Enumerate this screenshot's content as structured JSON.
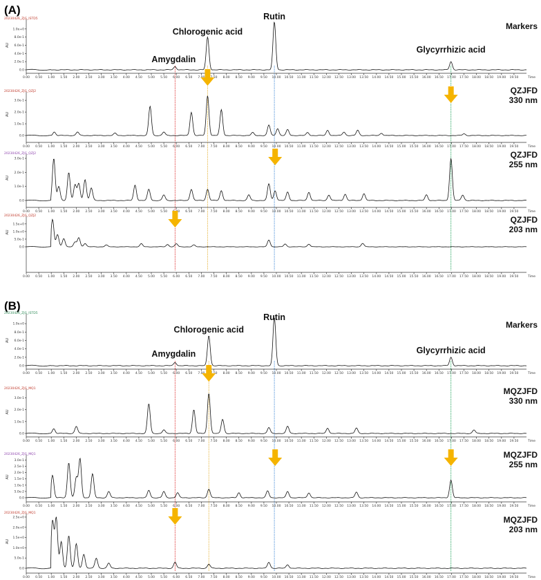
{
  "colors": {
    "arrow": "#f5b400",
    "line_amygdalin": "#e03c3c",
    "line_chlorogenic": "#e8b94a",
    "line_rutin": "#4a8fd8",
    "line_glycyrrhizic": "#2faa66",
    "trace": "#111111",
    "id_red": "#c0392b",
    "id_purple": "#8e44ad",
    "id_green": "#2e8b57"
  },
  "chart_data": [
    {
      "type": "line",
      "panel": "(A)",
      "title": "(A)",
      "xlabel": "Time",
      "xlim": [
        0.0,
        20.0
      ],
      "x_ticks": [
        "0.00",
        "0.50",
        "1.00",
        "1.50",
        "2.00",
        "2.50",
        "3.00",
        "3.50",
        "4.00",
        "4.50",
        "5.00",
        "5.50",
        "6.00",
        "6.50",
        "7.00",
        "7.50",
        "8.00",
        "8.50",
        "9.00",
        "9.50",
        "10.00",
        "10.50",
        "11.00",
        "11.50",
        "12.00",
        "12.50",
        "13.00",
        "13.50",
        "14.00",
        "14.50",
        "15.00",
        "15.50",
        "16.00",
        "16.50",
        "17.00",
        "17.50",
        "18.00",
        "18.50",
        "19.00",
        "19.50"
      ],
      "reference_lines": [
        {
          "name": "Amygdalin",
          "x": 5.95,
          "color_key": "line_amygdalin"
        },
        {
          "name": "Chlorogenic acid",
          "x": 7.25,
          "color_key": "line_chlorogenic"
        },
        {
          "name": "Rutin",
          "x": 9.92,
          "color_key": "line_rutin"
        },
        {
          "name": "Glycyrrhizic acid",
          "x": 16.98,
          "color_key": "line_glycyrrhizic"
        }
      ],
      "series": [
        {
          "name": "Markers",
          "sample_id": "20230426_ZJG_ISTD5",
          "id_color_key": "id_red",
          "ylabel": "AU",
          "y_ticks": [
            "0.0",
            "2.0e-1",
            "4.0e-1",
            "6.0e-1",
            "8.0e-1",
            "1.0e+0"
          ],
          "ymax": 1.2,
          "peaks": [
            {
              "label": "Amygdalin",
              "x": 5.95,
              "y": 0.08
            },
            {
              "label": "Chlorogenic acid",
              "x": 7.25,
              "y": 0.8
            },
            {
              "label": "Rutin",
              "x": 9.92,
              "y": 1.17
            },
            {
              "label": "Glycyrrhizic acid",
              "x": 16.98,
              "y": 0.2
            }
          ],
          "arrows": [
            {
              "x": 7.25
            }
          ]
        },
        {
          "name": "QZJFD\n330 nm",
          "sample_id": "20230426_ZJG_QZJ2",
          "id_color_key": "id_red",
          "ylabel": "AU",
          "y_ticks": [
            "0.0",
            "1.0e-1",
            "2.0e-1",
            "3.0e-1"
          ],
          "ymax": 0.36,
          "peaks": [
            {
              "x": 1.12,
              "y": 0.03
            },
            {
              "x": 2.05,
              "y": 0.03
            },
            {
              "x": 3.55,
              "y": 0.02
            },
            {
              "x": 4.95,
              "y": 0.25
            },
            {
              "x": 5.5,
              "y": 0.03
            },
            {
              "x": 6.6,
              "y": 0.2
            },
            {
              "x": 7.25,
              "y": 0.34
            },
            {
              "x": 7.8,
              "y": 0.22
            },
            {
              "x": 9.05,
              "y": 0.025
            },
            {
              "x": 9.7,
              "y": 0.09
            },
            {
              "x": 10.05,
              "y": 0.06
            },
            {
              "x": 10.45,
              "y": 0.05
            },
            {
              "x": 11.25,
              "y": 0.025
            },
            {
              "x": 12.05,
              "y": 0.045
            },
            {
              "x": 12.7,
              "y": 0.03
            },
            {
              "x": 13.25,
              "y": 0.045
            },
            {
              "x": 14.2,
              "y": 0.02
            },
            {
              "x": 17.5,
              "y": 0.015
            }
          ],
          "arrows": [
            {
              "x": 16.98
            }
          ]
        },
        {
          "name": "QZJFD\n255 nm",
          "sample_id": "20230426_ZJG_QZJ2",
          "id_color_key": "id_purple",
          "ylabel": "AU",
          "y_ticks": [
            "0.0",
            "1.0e-1",
            "2.0e-1",
            "3.0e-1"
          ],
          "ymax": 0.32,
          "peaks": [
            {
              "x": 1.1,
              "y": 0.3
            },
            {
              "x": 1.3,
              "y": 0.1
            },
            {
              "x": 1.7,
              "y": 0.2
            },
            {
              "x": 1.95,
              "y": 0.11
            },
            {
              "x": 2.1,
              "y": 0.12
            },
            {
              "x": 2.35,
              "y": 0.15
            },
            {
              "x": 2.6,
              "y": 0.09
            },
            {
              "x": 4.35,
              "y": 0.11
            },
            {
              "x": 4.9,
              "y": 0.08
            },
            {
              "x": 5.5,
              "y": 0.04
            },
            {
              "x": 6.6,
              "y": 0.08
            },
            {
              "x": 7.25,
              "y": 0.08
            },
            {
              "x": 7.8,
              "y": 0.07
            },
            {
              "x": 8.9,
              "y": 0.04
            },
            {
              "x": 9.7,
              "y": 0.12
            },
            {
              "x": 9.95,
              "y": 0.07
            },
            {
              "x": 10.45,
              "y": 0.06
            },
            {
              "x": 11.3,
              "y": 0.06
            },
            {
              "x": 12.1,
              "y": 0.04
            },
            {
              "x": 12.75,
              "y": 0.045
            },
            {
              "x": 13.5,
              "y": 0.05
            },
            {
              "x": 16.0,
              "y": 0.04
            },
            {
              "x": 16.98,
              "y": 0.3
            },
            {
              "x": 17.45,
              "y": 0.04
            }
          ],
          "arrows": [
            {
              "x": 9.95
            }
          ]
        },
        {
          "name": "QZJFD\n203 nm",
          "sample_id": "20230426_ZJG_QZJ2",
          "id_color_key": "id_red",
          "ylabel": "AU",
          "y_ticks": [
            "0.0",
            "5.0e-1",
            "1.0e+0",
            "1.5e+0"
          ],
          "ymax": 1.9,
          "peaks": [
            {
              "x": 1.05,
              "y": 1.8
            },
            {
              "x": 1.25,
              "y": 0.8
            },
            {
              "x": 1.5,
              "y": 0.55
            },
            {
              "x": 1.95,
              "y": 0.3
            },
            {
              "x": 2.1,
              "y": 0.6
            },
            {
              "x": 2.35,
              "y": 0.22
            },
            {
              "x": 3.2,
              "y": 0.12
            },
            {
              "x": 4.6,
              "y": 0.2
            },
            {
              "x": 5.65,
              "y": 0.15
            },
            {
              "x": 6.0,
              "y": 0.2
            },
            {
              "x": 6.7,
              "y": 0.12
            },
            {
              "x": 9.7,
              "y": 0.45
            },
            {
              "x": 10.35,
              "y": 0.18
            },
            {
              "x": 11.3,
              "y": 0.18
            },
            {
              "x": 13.45,
              "y": 0.23
            }
          ],
          "arrows": [
            {
              "x": 5.95
            }
          ]
        }
      ]
    },
    {
      "type": "line",
      "panel": "(B)",
      "title": "(B)",
      "xlabel": "Time",
      "xlim": [
        0.0,
        20.0
      ],
      "x_ticks": [
        "0.00",
        "0.50",
        "1.00",
        "1.50",
        "2.00",
        "2.50",
        "3.00",
        "3.50",
        "4.00",
        "4.50",
        "5.00",
        "5.50",
        "6.00",
        "6.50",
        "7.00",
        "7.50",
        "8.00",
        "8.50",
        "9.00",
        "9.50",
        "10.00",
        "10.50",
        "11.00",
        "11.50",
        "12.00",
        "12.50",
        "13.00",
        "13.50",
        "14.00",
        "14.50",
        "15.00",
        "15.50",
        "16.00",
        "16.50",
        "17.00",
        "17.50",
        "18.00",
        "18.50",
        "19.00",
        "19.50"
      ],
      "reference_lines": [
        {
          "name": "Amygdalin",
          "x": 5.95,
          "color_key": "line_amygdalin"
        },
        {
          "name": "Chlorogenic acid",
          "x": 7.3,
          "color_key": "line_chlorogenic"
        },
        {
          "name": "Rutin",
          "x": 9.92,
          "color_key": "line_rutin"
        },
        {
          "name": "Glycyrrhizic acid",
          "x": 16.98,
          "color_key": "line_glycyrrhizic"
        }
      ],
      "series": [
        {
          "name": "Markers",
          "sample_id": "20230426_ZJG_ISTD5",
          "id_color_key": "id_green",
          "ylabel": "AU",
          "y_ticks": [
            "0.0",
            "2.0e-1",
            "4.0e-1",
            "6.0e-1",
            "8.0e-1",
            "1.0e+0"
          ],
          "ymax": 1.2,
          "peaks": [
            {
              "label": "Amygdalin",
              "x": 5.95,
              "y": 0.08
            },
            {
              "label": "Chlorogenic acid",
              "x": 7.3,
              "y": 0.72
            },
            {
              "label": "Rutin",
              "x": 9.92,
              "y": 1.15
            },
            {
              "label": "Glycyrrhizic acid",
              "x": 16.98,
              "y": 0.2
            }
          ],
          "arrows": [
            {
              "x": 7.3
            }
          ]
        },
        {
          "name": "MQZJFD\n330 nm",
          "sample_id": "20230426_ZJG_MQ1",
          "id_color_key": "id_red",
          "ylabel": "AU",
          "y_ticks": [
            "0.0",
            "1.0e-1",
            "2.0e-1",
            "3.0e-1"
          ],
          "ymax": 0.36,
          "peaks": [
            {
              "x": 1.1,
              "y": 0.04
            },
            {
              "x": 2.0,
              "y": 0.06
            },
            {
              "x": 4.9,
              "y": 0.25
            },
            {
              "x": 5.5,
              "y": 0.03
            },
            {
              "x": 6.7,
              "y": 0.2
            },
            {
              "x": 7.3,
              "y": 0.34
            },
            {
              "x": 7.85,
              "y": 0.12
            },
            {
              "x": 9.7,
              "y": 0.05
            },
            {
              "x": 10.45,
              "y": 0.06
            },
            {
              "x": 12.05,
              "y": 0.045
            },
            {
              "x": 13.2,
              "y": 0.045
            },
            {
              "x": 17.9,
              "y": 0.03
            }
          ],
          "arrows": []
        },
        {
          "name": "MQZJFD\n255 nm",
          "sample_id": "20230426_ZJG_MQ1",
          "id_color_key": "id_purple",
          "ylabel": "AU",
          "y_ticks": [
            "0.0",
            "5.0e-2",
            "1.0e-1",
            "1.5e-1",
            "2.0e-1",
            "2.5e-1",
            "3.0e-1"
          ],
          "ymax": 0.33,
          "peaks": [
            {
              "x": 1.05,
              "y": 0.18
            },
            {
              "x": 1.7,
              "y": 0.28
            },
            {
              "x": 2.0,
              "y": 0.16
            },
            {
              "x": 2.15,
              "y": 0.31
            },
            {
              "x": 2.65,
              "y": 0.19
            },
            {
              "x": 3.3,
              "y": 0.05
            },
            {
              "x": 4.9,
              "y": 0.06
            },
            {
              "x": 5.5,
              "y": 0.05
            },
            {
              "x": 6.05,
              "y": 0.04
            },
            {
              "x": 7.3,
              "y": 0.07
            },
            {
              "x": 8.5,
              "y": 0.04
            },
            {
              "x": 9.65,
              "y": 0.055
            },
            {
              "x": 10.45,
              "y": 0.05
            },
            {
              "x": 11.3,
              "y": 0.04
            },
            {
              "x": 13.2,
              "y": 0.045
            },
            {
              "x": 16.98,
              "y": 0.14
            }
          ],
          "arrows": [
            {
              "x": 9.95
            },
            {
              "x": 16.98
            }
          ]
        },
        {
          "name": "MQZJFD\n203 nm",
          "sample_id": "20230426_ZJG_MQ1",
          "id_color_key": "id_red",
          "ylabel": "AU",
          "y_ticks": [
            "-5.0e-1",
            "0.0",
            "5.0e-1",
            "1.0e+0",
            "1.5e+0",
            "2.0e+0",
            "2.5e+0"
          ],
          "ymax": 2.6,
          "peaks": [
            {
              "x": 1.05,
              "y": 2.3
            },
            {
              "x": 1.2,
              "y": 2.45
            },
            {
              "x": 1.4,
              "y": 1.3
            },
            {
              "x": 1.7,
              "y": 1.6
            },
            {
              "x": 2.0,
              "y": 1.2
            },
            {
              "x": 2.3,
              "y": 0.7
            },
            {
              "x": 2.8,
              "y": 0.5
            },
            {
              "x": 3.3,
              "y": 0.25
            },
            {
              "x": 5.95,
              "y": 0.3
            },
            {
              "x": 7.3,
              "y": 0.2
            },
            {
              "x": 9.7,
              "y": 0.3
            },
            {
              "x": 10.45,
              "y": 0.18
            }
          ],
          "arrows": [
            {
              "x": 5.95
            }
          ]
        }
      ]
    }
  ]
}
